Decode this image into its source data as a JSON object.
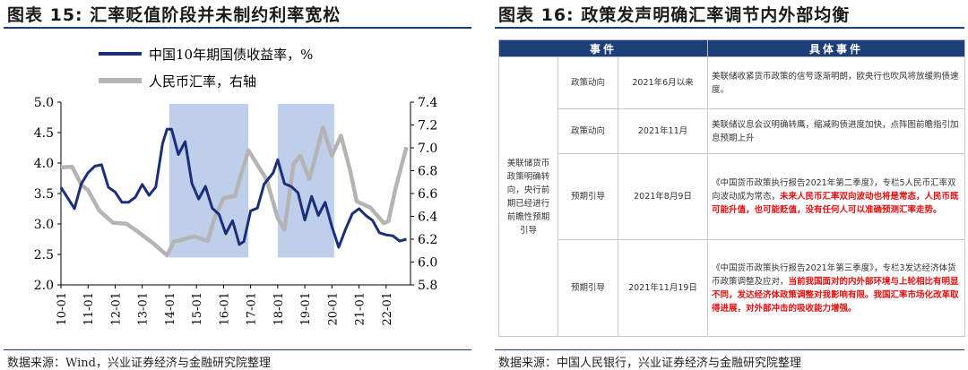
{
  "left": {
    "title": "图表 15: 汇率贬值阶段并未制约利率宽松",
    "source": "数据来源：Wind，兴业证券经济与金融研究院整理"
  },
  "right": {
    "title": "图表 16: 政策发声明确汇率调节内外部均衡",
    "source": "数据来源：中国人民银行，兴业证券经济与金融研究院整理",
    "table": {
      "headers": [
        "事件",
        "具体事件"
      ],
      "group_label": "美联储货币政策明确转向，央行前期已经进行前瞻性预期引导",
      "rows": [
        {
          "type": "政策动向",
          "date": "2021年6月以来",
          "detail": [
            {
              "t": "美联储收紧货币政策的信号逐渐明朗，欧央行也吹风将放缓购债速度。",
              "red": false
            }
          ]
        },
        {
          "type": "政策动向",
          "date": "2021年11月",
          "detail": [
            {
              "t": "美联储议息会议明确转鹰，缩减购债进度加快，点阵图前瞻指引加息预期上升",
              "red": false
            }
          ]
        },
        {
          "type": "预期引导",
          "date": "2021年8月9日",
          "detail": [
            {
              "t": "《中国货币政策执行报告2021年第二季度》，专栏5人民币汇率双向波动成为常态，",
              "red": false
            },
            {
              "t": "未来人民币汇率双向波动也将是常态，人民币既可能升值，也可能贬值，没有任何人可以准确预测汇率走势。",
              "red": true
            }
          ]
        },
        {
          "type": "预期引导",
          "date": "2021年11月19日",
          "detail": [
            {
              "t": "《中国货币政策执行报告2021年第三季度》，专栏3发达经济体货币政策调整及应对，",
              "red": false
            },
            {
              "t": "当前我国面对的内外部环境与上轮相比有明显不同，发达经济体政策调整对我影响有限。我国汇率市场化改革取得进展，对外部冲击的吸收能力增强。",
              "red": true
            }
          ]
        }
      ]
    }
  },
  "chart_data": {
    "type": "line",
    "title": "",
    "xlabel": "",
    "ylabel_left": "",
    "ylabel_right": "",
    "x_ticks": [
      "10-01",
      "11-01",
      "12-01",
      "13-01",
      "14-01",
      "15-01",
      "16-01",
      "17-01",
      "18-01",
      "19-01",
      "20-01",
      "21-01",
      "22-01"
    ],
    "ylim_left": [
      2.0,
      5.0
    ],
    "yticks_left": [
      "2.0",
      "2.5",
      "3.0",
      "3.5",
      "4.0",
      "4.5",
      "5.0"
    ],
    "ylim_right": [
      5.8,
      7.4
    ],
    "yticks_right": [
      "5.8",
      "6.0",
      "6.2",
      "6.4",
      "6.6",
      "6.8",
      "7.0",
      "7.2",
      "7.4"
    ],
    "legend_placement": "top",
    "shaded_periods": [
      [
        "2014-01",
        "2016-12"
      ],
      [
        "2018-01",
        "2020-02"
      ]
    ],
    "series": [
      {
        "name": "中国10年期国债收益率，%",
        "axis": "left",
        "color": "#1a2f7a",
        "x": [
          "2010-01",
          "2010-04",
          "2010-07",
          "2010-10",
          "2011-01",
          "2011-04",
          "2011-07",
          "2011-10",
          "2012-01",
          "2012-04",
          "2012-07",
          "2012-10",
          "2013-01",
          "2013-04",
          "2013-07",
          "2013-10",
          "2013-12",
          "2014-02",
          "2014-05",
          "2014-08",
          "2014-11",
          "2015-02",
          "2015-05",
          "2015-08",
          "2015-11",
          "2016-02",
          "2016-05",
          "2016-08",
          "2016-10",
          "2017-01",
          "2017-04",
          "2017-07",
          "2017-11",
          "2018-01",
          "2018-04",
          "2018-07",
          "2018-10",
          "2019-01",
          "2019-04",
          "2019-07",
          "2019-10",
          "2020-01",
          "2020-04",
          "2020-07",
          "2020-10",
          "2021-01",
          "2021-04",
          "2021-07",
          "2021-10",
          "2022-01",
          "2022-04",
          "2022-07",
          "2022-10"
        ],
        "y": [
          3.6,
          3.4,
          3.3,
          3.6,
          3.9,
          3.9,
          4.0,
          3.6,
          3.5,
          3.4,
          3.3,
          3.5,
          3.6,
          3.5,
          3.6,
          4.3,
          4.6,
          4.5,
          4.2,
          4.3,
          3.7,
          3.4,
          3.6,
          3.3,
          3.1,
          2.9,
          3.0,
          2.7,
          2.7,
          3.2,
          3.3,
          3.6,
          3.9,
          4.0,
          3.7,
          3.6,
          3.5,
          3.1,
          3.4,
          3.2,
          3.3,
          3.0,
          2.6,
          2.9,
          3.2,
          3.2,
          3.2,
          3.0,
          2.9,
          2.8,
          2.8,
          2.75,
          2.7
        ]
      },
      {
        "name": "人民币汇率，右轴",
        "axis": "right",
        "color": "#b4b4b4",
        "x": [
          "2010-01",
          "2010-06",
          "2010-10",
          "2011-01",
          "2011-06",
          "2011-12",
          "2012-06",
          "2012-12",
          "2013-06",
          "2013-12",
          "2014-03",
          "2014-06",
          "2014-12",
          "2015-06",
          "2015-09",
          "2016-01",
          "2016-06",
          "2016-12",
          "2017-04",
          "2017-08",
          "2018-01",
          "2018-04",
          "2018-08",
          "2018-11",
          "2019-03",
          "2019-05",
          "2019-09",
          "2020-01",
          "2020-05",
          "2020-09",
          "2020-12",
          "2021-06",
          "2021-12",
          "2022-02",
          "2022-05",
          "2022-08",
          "2022-10"
        ],
        "y": [
          6.83,
          6.82,
          6.7,
          6.6,
          6.48,
          6.32,
          6.35,
          6.25,
          6.15,
          6.08,
          6.15,
          6.22,
          6.2,
          6.2,
          6.38,
          6.55,
          6.6,
          6.95,
          6.88,
          6.7,
          6.4,
          6.28,
          6.85,
          6.95,
          6.7,
          6.9,
          7.15,
          6.95,
          7.1,
          6.8,
          6.55,
          6.45,
          6.37,
          6.33,
          6.65,
          6.85,
          7.0
        ]
      }
    ]
  }
}
